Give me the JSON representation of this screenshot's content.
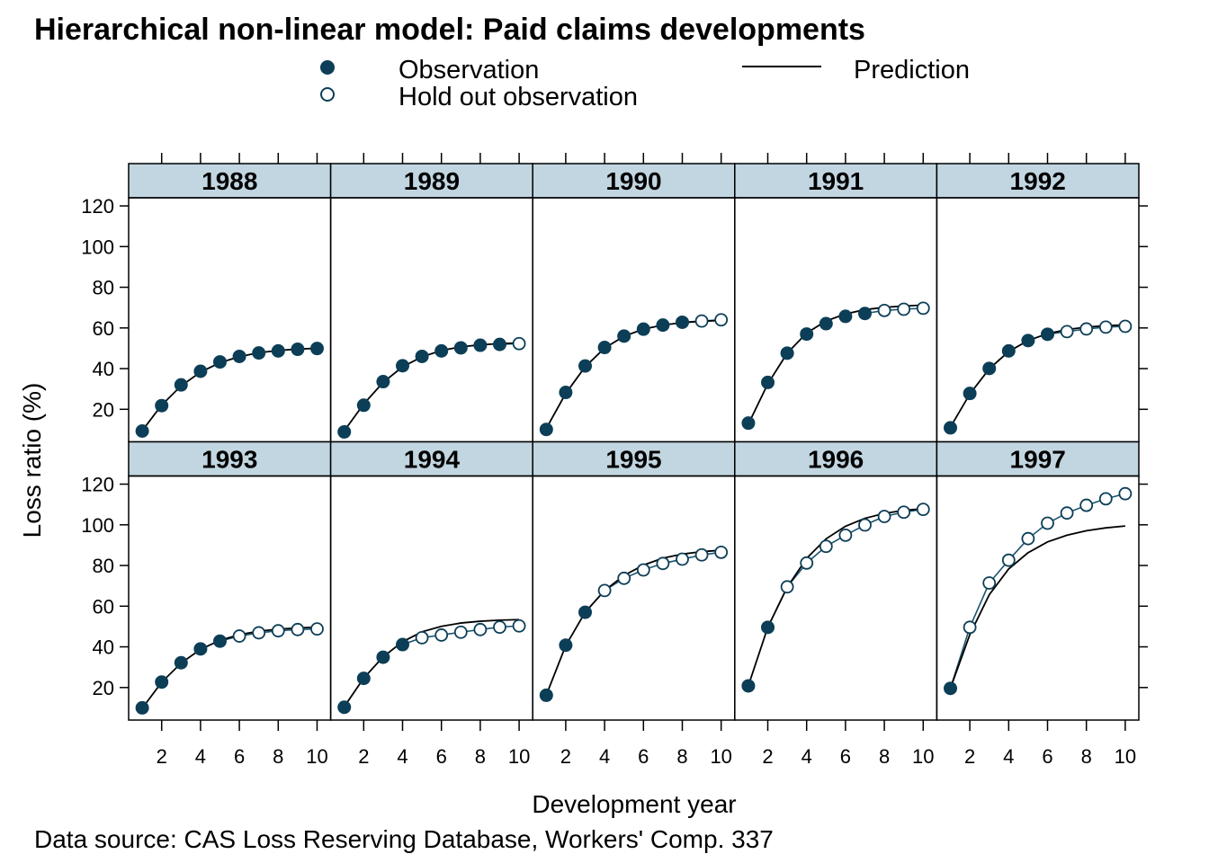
{
  "chart_data": {
    "type": "line",
    "title": "Hierarchical non-linear model: Paid claims developments",
    "xlabel": "Development year",
    "ylabel": "Loss ratio (%)",
    "source": "Data source: CAS Loss Reserving Database,  Workers' Comp. 337",
    "xlim": [
      0.3,
      10.7
    ],
    "ylim": [
      4,
      124
    ],
    "x_ticks": [
      2,
      4,
      6,
      8,
      10
    ],
    "y_ticks": [
      20,
      40,
      60,
      80,
      100,
      120
    ],
    "layout": "5 columns x 2 rows",
    "legend": {
      "position": "top",
      "items": [
        {
          "label": "Observation",
          "kind": "filled-point"
        },
        {
          "label": "Hold out observation",
          "kind": "open-point"
        },
        {
          "label": "Prediction",
          "kind": "line"
        }
      ]
    },
    "colors": {
      "observation": "#0c3e57",
      "hold_out": "#0c3e57",
      "hold_out_line": "#1c5570",
      "prediction": "#000000",
      "strip": "#c2d6e1"
    },
    "panels": [
      {
        "year": "1988",
        "observed": [
          9.3,
          21.8,
          32,
          38.7,
          43.3,
          46,
          47.7,
          48.7,
          49.5,
          49.9
        ],
        "holdout_start": 11,
        "prediction": [
          9.5,
          22.1,
          31.5,
          38.3,
          42.9,
          45.9,
          47.8,
          48.9,
          49.6,
          50
        ]
      },
      {
        "year": "1989",
        "observed": [
          8.9,
          22,
          33.6,
          41.4,
          46,
          48.7,
          50.2,
          51.5,
          51.9,
          52.3
        ],
        "holdout_start": 10,
        "prediction": [
          9.4,
          22.6,
          33.2,
          40.9,
          45.8,
          48.9,
          50.7,
          51.7,
          52.3,
          52.6
        ]
      },
      {
        "year": "1990",
        "observed": [
          10.1,
          28.3,
          41.3,
          50.4,
          56,
          59.4,
          61.4,
          62.8,
          63.4,
          64
        ],
        "holdout_start": 9,
        "prediction": [
          10.6,
          27.8,
          40.9,
          50.1,
          55.9,
          59.4,
          61.4,
          62.6,
          63.3,
          63.7
        ]
      },
      {
        "year": "1991",
        "observed": [
          13.2,
          33.2,
          47.6,
          57,
          62.1,
          65.7,
          67.1,
          68.6,
          69.2,
          69.7
        ],
        "holdout_start": 8,
        "prediction": [
          12.7,
          32.5,
          47.6,
          57.5,
          63.4,
          66.9,
          69,
          70.1,
          70.8,
          71.2
        ]
      },
      {
        "year": "1992",
        "observed": [
          10.9,
          27.8,
          40.1,
          48.7,
          53.8,
          56.9,
          58.2,
          59.5,
          60.4,
          60.8
        ],
        "holdout_start": 7,
        "prediction": [
          11.2,
          27.5,
          39.9,
          48.4,
          53.8,
          57.2,
          59.2,
          60.4,
          61.1,
          61.5
        ]
      },
      {
        "year": "1993",
        "observed": [
          10,
          22.7,
          32.2,
          39,
          42.8,
          45.3,
          46.9,
          47.9,
          48.5,
          48.8
        ],
        "holdout_start": 6,
        "prediction": [
          9.8,
          22.6,
          32,
          38.8,
          43.2,
          46,
          47.7,
          48.7,
          49.3,
          49.7
        ]
      },
      {
        "year": "1994",
        "observed": [
          10.3,
          24.5,
          34.9,
          41.1,
          44.5,
          45.8,
          47.2,
          48.5,
          49.7,
          50.3
        ],
        "holdout_start": 5,
        "prediction": [
          10.6,
          24.6,
          35.1,
          42.5,
          47.4,
          50.1,
          51.7,
          52.6,
          53.1,
          53.4
        ]
      },
      {
        "year": "1995",
        "observed": [
          16.2,
          40.8,
          57,
          67.7,
          73.7,
          77.8,
          81,
          83.1,
          85.2,
          86.5
        ],
        "holdout_start": 4,
        "prediction": [
          16.3,
          40.6,
          57,
          67.7,
          75.1,
          80.2,
          83.6,
          85.6,
          86.8,
          87.5
        ]
      },
      {
        "year": "1996",
        "observed": [
          20.8,
          49.6,
          69.5,
          81.2,
          89.4,
          94.9,
          99.9,
          104.1,
          106.2,
          107.6
        ],
        "holdout_start": 3,
        "prediction": [
          20.9,
          49.6,
          69.3,
          83.5,
          93.1,
          99.3,
          103.2,
          105.6,
          107.1,
          107.9
        ]
      },
      {
        "year": "1997",
        "observed": [
          19.6,
          49.6,
          71.4,
          82.6,
          93.2,
          100.8,
          105.8,
          109.6,
          112.8,
          115.3
        ],
        "holdout_start": 2,
        "prediction": [
          19.6,
          46,
          65.6,
          78.3,
          86.3,
          91.6,
          94.9,
          97.1,
          98.5,
          99.4
        ]
      }
    ]
  }
}
